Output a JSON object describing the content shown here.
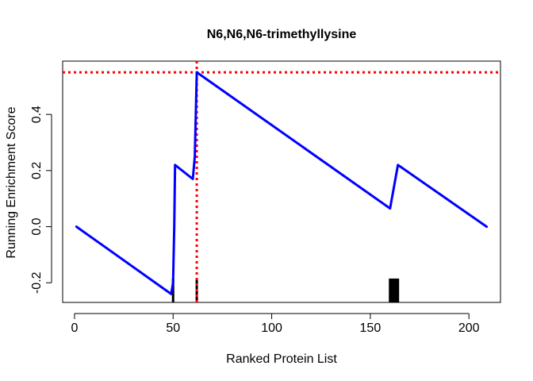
{
  "chart_data": {
    "type": "line",
    "title": "N6,N6,N6-trimethyllysine",
    "xlabel": "Ranked Protein List",
    "ylabel": "Running Enrichment Score",
    "xlim": [
      -6,
      216
    ],
    "ylim": [
      -0.27,
      0.59
    ],
    "x_ticks": [
      0,
      50,
      100,
      150,
      200
    ],
    "y_ticks": [
      -0.2,
      0.0,
      0.2,
      0.4
    ],
    "x_tick_labels": [
      "0",
      "50",
      "100",
      "150",
      "200"
    ],
    "y_tick_labels": [
      "-0.2",
      "0.0",
      "0.2",
      "0.4"
    ],
    "series": [
      {
        "color": "#0000ff",
        "x": [
          1,
          49,
          50,
          50.6,
          51,
          60,
          61,
          62,
          160,
          164,
          209
        ],
        "y": [
          0.0,
          -0.24,
          -0.2,
          0.0,
          0.22,
          0.17,
          0.25,
          0.55,
          0.065,
          0.22,
          0.0
        ]
      }
    ],
    "max_line": {
      "x": 62,
      "y": 0.55,
      "color": "#ff0000",
      "style": "dotted"
    },
    "hits": {
      "color": "#000000",
      "positions": [
        50,
        62,
        160,
        160.5,
        161,
        161.5,
        162,
        162.5,
        163,
        163.5,
        164
      ],
      "y_top": -0.185,
      "y_bottom": -0.27
    },
    "grid": false,
    "legend": "none"
  }
}
